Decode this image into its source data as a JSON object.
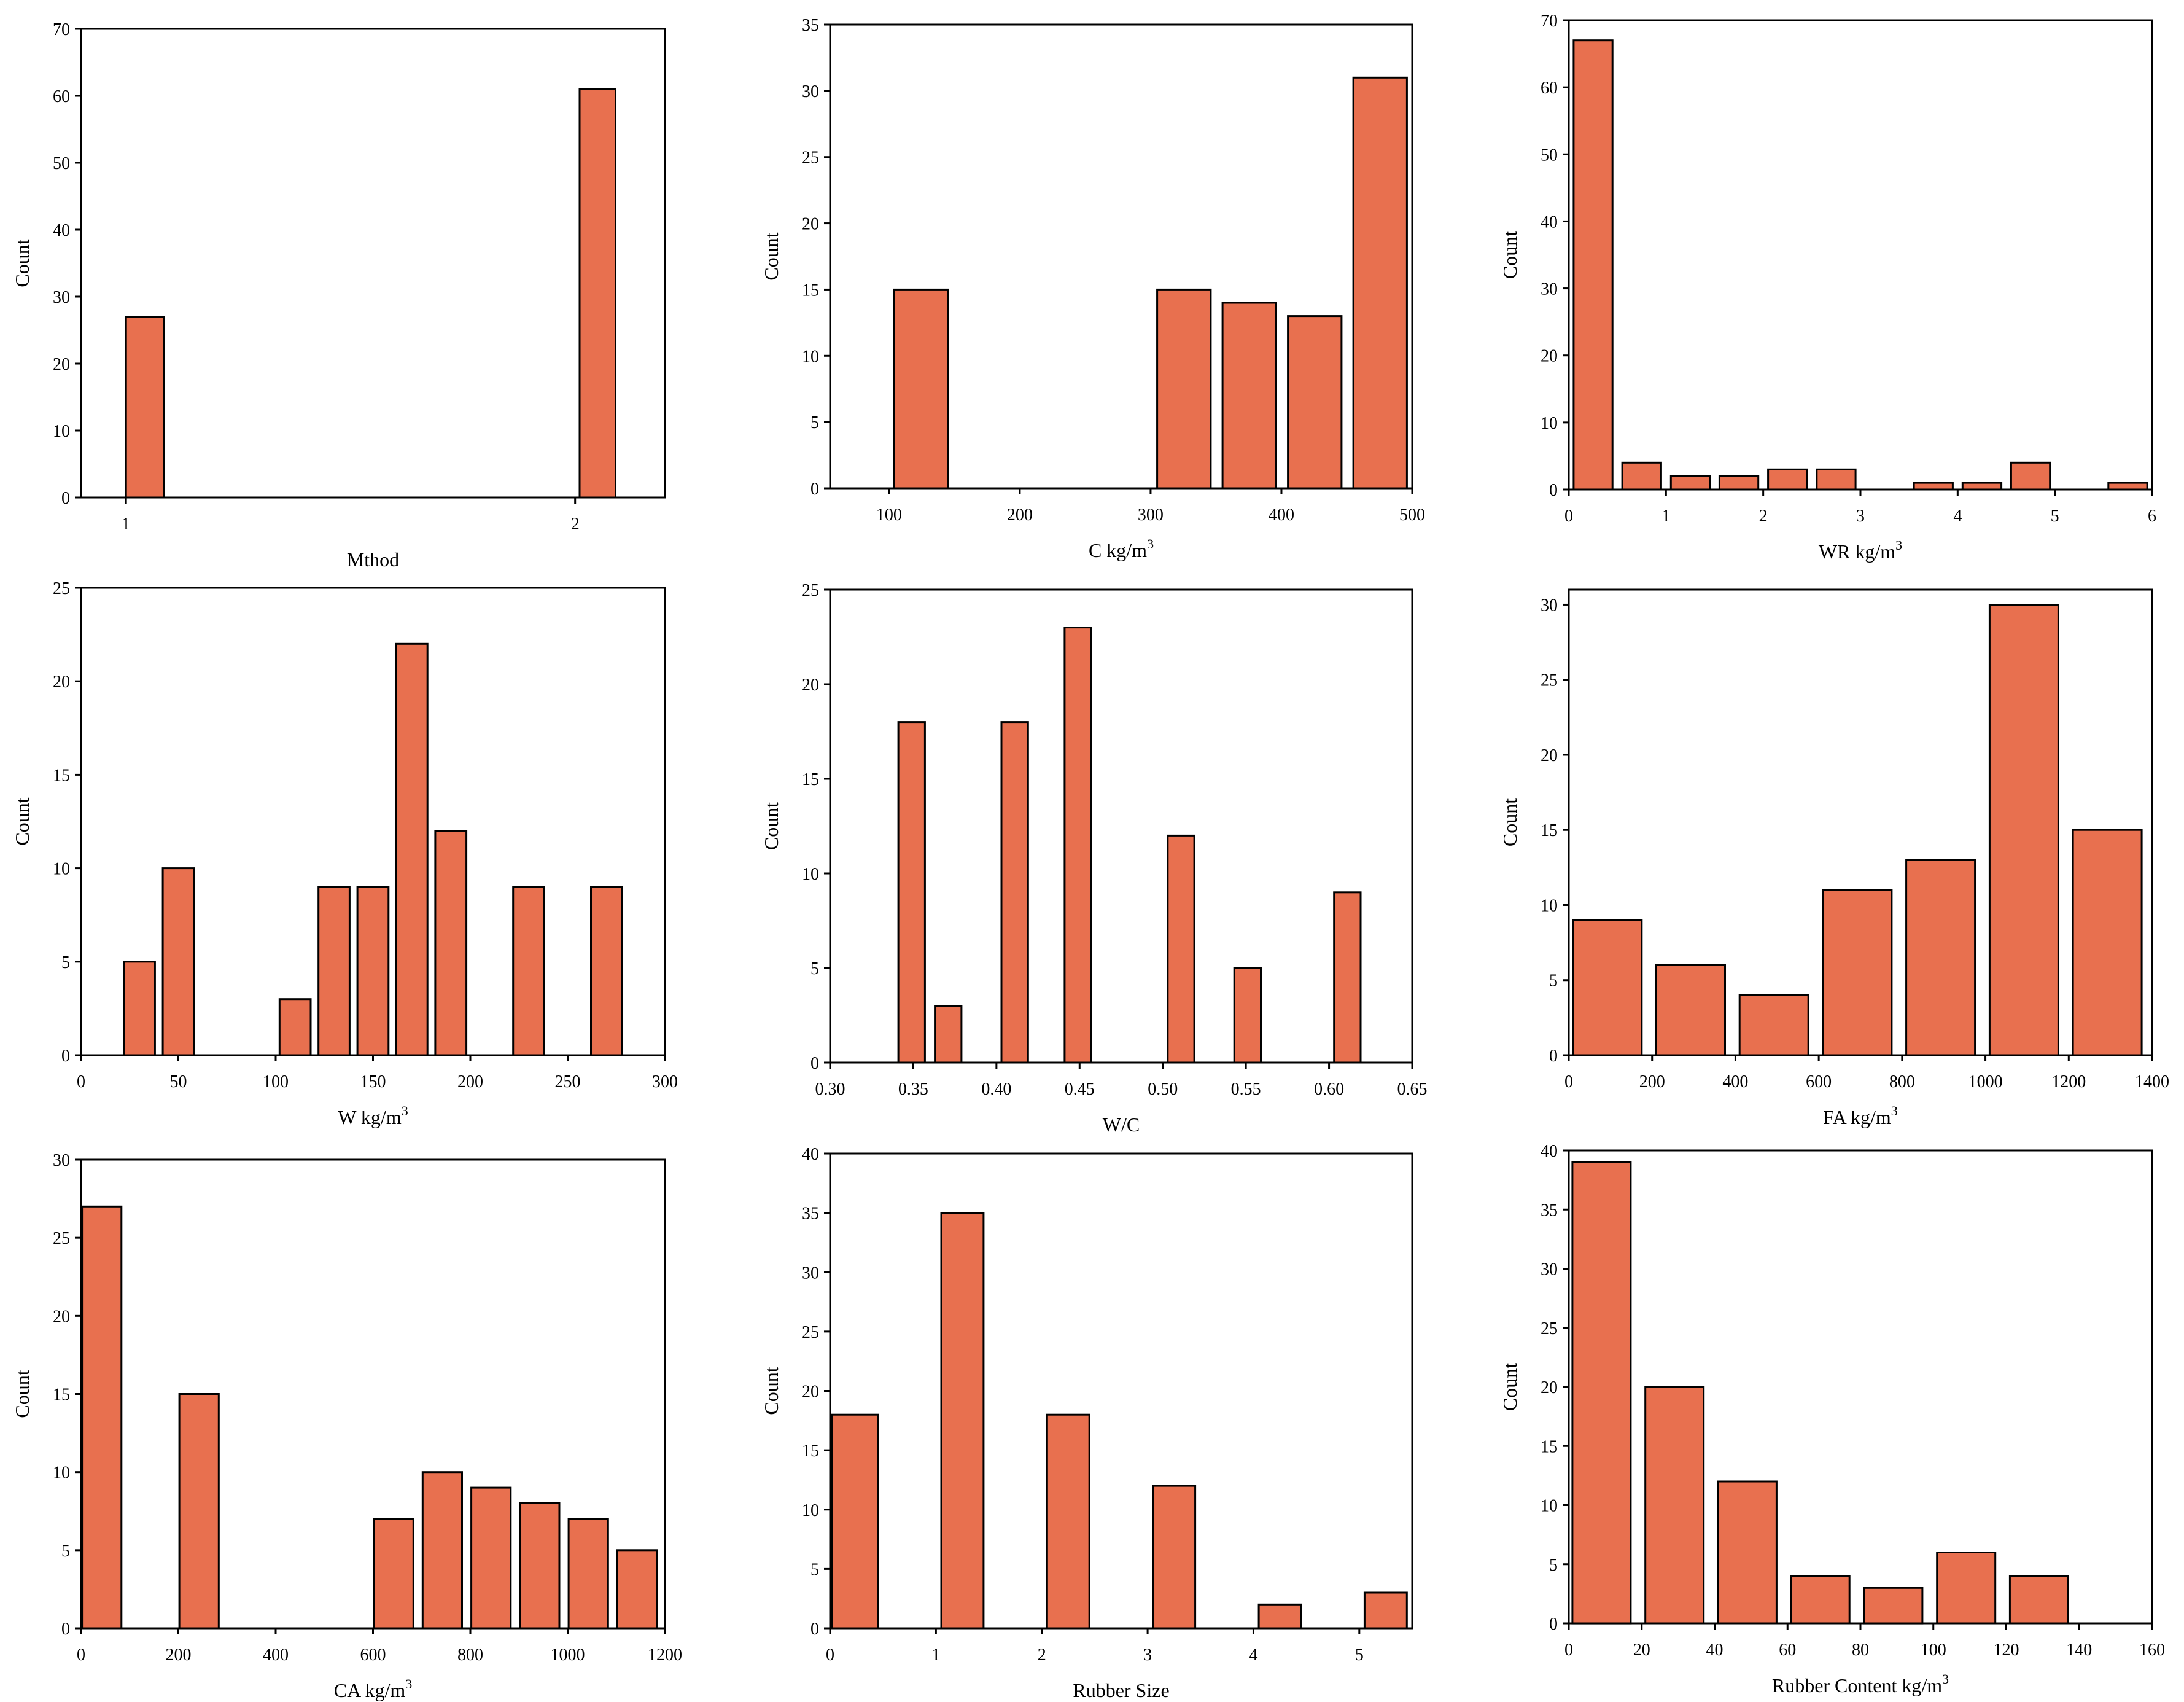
{
  "style": {
    "bar_fill": "#E8704F",
    "bar_stroke": "#000000",
    "frame_stroke": "#000000"
  },
  "chart_data": [
    {
      "type": "bar",
      "xlabel": "Mthod",
      "xsup": "",
      "ylabel": "Count",
      "xlim": [
        0.9,
        2.2
      ],
      "ylim": [
        0,
        70
      ],
      "xticks": [
        1,
        2
      ],
      "xtick_labels": [
        "1",
        "2"
      ],
      "yticks": [
        0,
        10,
        20,
        30,
        40,
        50,
        60,
        70
      ],
      "ytick_labels": [
        "0",
        "10",
        "20",
        "30",
        "40",
        "50",
        "60",
        "70"
      ],
      "bars": [
        {
          "x0": 1.0,
          "x1": 1.085,
          "value": 27
        },
        {
          "x0": 2.01,
          "x1": 2.09,
          "value": 61
        }
      ]
    },
    {
      "type": "bar",
      "xlabel": "C kg/m",
      "xsup": "3",
      "ylabel": "Count",
      "xlim": [
        55,
        500
      ],
      "ylim": [
        0,
        35
      ],
      "xticks": [
        100,
        200,
        300,
        400,
        500
      ],
      "xtick_labels": [
        "100",
        "200",
        "300",
        "400",
        "500"
      ],
      "yticks": [
        0,
        5,
        10,
        15,
        20,
        25,
        30,
        35
      ],
      "ytick_labels": [
        "0",
        "5",
        "10",
        "15",
        "20",
        "25",
        "30",
        "35"
      ],
      "bars": [
        {
          "x0": 104,
          "x1": 145,
          "value": 15
        },
        {
          "x0": 305,
          "x1": 346,
          "value": 15
        },
        {
          "x0": 355,
          "x1": 396,
          "value": 14
        },
        {
          "x0": 405,
          "x1": 446,
          "value": 13
        },
        {
          "x0": 455,
          "x1": 496,
          "value": 31
        }
      ]
    },
    {
      "type": "bar",
      "xlabel": "WR kg/m",
      "xsup": "3",
      "ylabel": "Count",
      "xlim": [
        0,
        6
      ],
      "ylim": [
        0,
        70
      ],
      "xticks": [
        0,
        1,
        2,
        3,
        4,
        5,
        6
      ],
      "xtick_labels": [
        "0",
        "1",
        "2",
        "3",
        "4",
        "5",
        "6"
      ],
      "yticks": [
        0,
        10,
        20,
        30,
        40,
        50,
        60,
        70
      ],
      "ytick_labels": [
        "0",
        "10",
        "20",
        "30",
        "40",
        "50",
        "60",
        "70"
      ],
      "bars": [
        {
          "x0": 0.05,
          "x1": 0.45,
          "value": 67
        },
        {
          "x0": 0.55,
          "x1": 0.95,
          "value": 4
        },
        {
          "x0": 1.05,
          "x1": 1.45,
          "value": 2
        },
        {
          "x0": 1.55,
          "x1": 1.95,
          "value": 2
        },
        {
          "x0": 2.05,
          "x1": 2.45,
          "value": 3
        },
        {
          "x0": 2.55,
          "x1": 2.95,
          "value": 3
        },
        {
          "x0": 3.55,
          "x1": 3.95,
          "value": 1
        },
        {
          "x0": 4.05,
          "x1": 4.45,
          "value": 1
        },
        {
          "x0": 4.55,
          "x1": 4.95,
          "value": 4
        },
        {
          "x0": 5.55,
          "x1": 5.95,
          "value": 1
        }
      ]
    },
    {
      "type": "bar",
      "xlabel": "W kg/m",
      "xsup": "3",
      "ylabel": "Count",
      "xlim": [
        0,
        300
      ],
      "ylim": [
        0,
        25
      ],
      "xticks": [
        0,
        50,
        100,
        150,
        200,
        250,
        300
      ],
      "xtick_labels": [
        "0",
        "50",
        "100",
        "150",
        "200",
        "250",
        "300"
      ],
      "yticks": [
        0,
        5,
        10,
        15,
        20,
        25
      ],
      "ytick_labels": [
        "0",
        "5",
        "10",
        "15",
        "20",
        "25"
      ],
      "bars": [
        {
          "x0": 22,
          "x1": 38,
          "value": 5
        },
        {
          "x0": 42,
          "x1": 58,
          "value": 10
        },
        {
          "x0": 102,
          "x1": 118,
          "value": 3
        },
        {
          "x0": 122,
          "x1": 138,
          "value": 9
        },
        {
          "x0": 142,
          "x1": 158,
          "value": 9
        },
        {
          "x0": 162,
          "x1": 178,
          "value": 22
        },
        {
          "x0": 182,
          "x1": 198,
          "value": 12
        },
        {
          "x0": 222,
          "x1": 238,
          "value": 9
        },
        {
          "x0": 262,
          "x1": 278,
          "value": 9
        }
      ]
    },
    {
      "type": "bar",
      "xlabel": "W/C",
      "xsup": "",
      "ylabel": "Count",
      "xlim": [
        0.3,
        0.65
      ],
      "ylim": [
        0,
        25
      ],
      "xticks": [
        0.3,
        0.35,
        0.4,
        0.45,
        0.5,
        0.55,
        0.6,
        0.65
      ],
      "xtick_labels": [
        "0.30",
        "0.35",
        "0.40",
        "0.45",
        "0.50",
        "0.55",
        "0.60",
        "0.65"
      ],
      "yticks": [
        0,
        5,
        10,
        15,
        20,
        25
      ],
      "ytick_labels": [
        "0",
        "5",
        "10",
        "15",
        "20",
        "25"
      ],
      "bars": [
        {
          "x0": 0.341,
          "x1": 0.357,
          "value": 18
        },
        {
          "x0": 0.363,
          "x1": 0.379,
          "value": 3
        },
        {
          "x0": 0.403,
          "x1": 0.419,
          "value": 18
        },
        {
          "x0": 0.441,
          "x1": 0.457,
          "value": 23
        },
        {
          "x0": 0.503,
          "x1": 0.519,
          "value": 12
        },
        {
          "x0": 0.543,
          "x1": 0.559,
          "value": 5
        },
        {
          "x0": 0.603,
          "x1": 0.619,
          "value": 9
        }
      ]
    },
    {
      "type": "bar",
      "xlabel": "FA kg/m",
      "xsup": "3",
      "ylabel": "Count",
      "xlim": [
        0,
        1400
      ],
      "ylim": [
        0,
        31
      ],
      "xticks": [
        0,
        200,
        400,
        600,
        800,
        1000,
        1200,
        1400
      ],
      "xtick_labels": [
        "0",
        "200",
        "400",
        "600",
        "800",
        "1000",
        "1200",
        "1400"
      ],
      "yticks": [
        0,
        5,
        10,
        15,
        20,
        25,
        30
      ],
      "ytick_labels": [
        "0",
        "5",
        "10",
        "15",
        "20",
        "25",
        "30"
      ],
      "bars": [
        {
          "x0": 10,
          "x1": 175,
          "value": 9
        },
        {
          "x0": 210,
          "x1": 375,
          "value": 6
        },
        {
          "x0": 410,
          "x1": 575,
          "value": 4
        },
        {
          "x0": 610,
          "x1": 775,
          "value": 11
        },
        {
          "x0": 810,
          "x1": 975,
          "value": 13
        },
        {
          "x0": 1010,
          "x1": 1175,
          "value": 30
        },
        {
          "x0": 1210,
          "x1": 1375,
          "value": 15
        }
      ]
    },
    {
      "type": "bar",
      "xlabel": "CA kg/m",
      "xsup": "3",
      "ylabel": "Count",
      "xlim": [
        0,
        1200
      ],
      "ylim": [
        0,
        30
      ],
      "xticks": [
        0,
        200,
        400,
        600,
        800,
        1000,
        1200
      ],
      "xtick_labels": [
        "0",
        "200",
        "400",
        "600",
        "800",
        "1000",
        "1200"
      ],
      "yticks": [
        0,
        5,
        10,
        15,
        20,
        25,
        30
      ],
      "ytick_labels": [
        "0",
        "5",
        "10",
        "15",
        "20",
        "25",
        "30"
      ],
      "bars": [
        {
          "x0": 2,
          "x1": 83,
          "value": 27
        },
        {
          "x0": 202,
          "x1": 283,
          "value": 15
        },
        {
          "x0": 602,
          "x1": 683,
          "value": 7
        },
        {
          "x0": 702,
          "x1": 783,
          "value": 10
        },
        {
          "x0": 802,
          "x1": 883,
          "value": 9
        },
        {
          "x0": 902,
          "x1": 983,
          "value": 8
        },
        {
          "x0": 1002,
          "x1": 1083,
          "value": 7
        },
        {
          "x0": 1102,
          "x1": 1183,
          "value": 5
        }
      ]
    },
    {
      "type": "bar",
      "xlabel": "Rubber Size",
      "xsup": "",
      "ylabel": "Count",
      "xlim": [
        0,
        5.5
      ],
      "ylim": [
        0,
        40
      ],
      "xticks": [
        0,
        1,
        2,
        3,
        4,
        5
      ],
      "xtick_labels": [
        "0",
        "1",
        "2",
        "3",
        "4",
        "5"
      ],
      "yticks": [
        0,
        5,
        10,
        15,
        20,
        25,
        30,
        35,
        40
      ],
      "ytick_labels": [
        "0",
        "5",
        "10",
        "15",
        "20",
        "25",
        "30",
        "35",
        "40"
      ],
      "bars": [
        {
          "x0": 0.02,
          "x1": 0.45,
          "value": 18
        },
        {
          "x0": 1.05,
          "x1": 1.45,
          "value": 35
        },
        {
          "x0": 2.05,
          "x1": 2.45,
          "value": 18
        },
        {
          "x0": 3.05,
          "x1": 3.45,
          "value": 12
        },
        {
          "x0": 4.05,
          "x1": 4.45,
          "value": 2
        },
        {
          "x0": 5.05,
          "x1": 5.45,
          "value": 3
        }
      ]
    },
    {
      "type": "bar",
      "xlabel": "Rubber Content kg/m",
      "xsup": "3",
      "ylabel": "Count",
      "xlim": [
        0,
        160
      ],
      "ylim": [
        0,
        40
      ],
      "xticks": [
        0,
        20,
        40,
        60,
        80,
        100,
        120,
        140,
        160
      ],
      "xtick_labels": [
        "0",
        "20",
        "40",
        "60",
        "80",
        "100",
        "120",
        "140",
        "160"
      ],
      "yticks": [
        0,
        5,
        10,
        15,
        20,
        25,
        30,
        35,
        40
      ],
      "ytick_labels": [
        "0",
        "5",
        "10",
        "15",
        "20",
        "25",
        "30",
        "35",
        "40"
      ],
      "bars": [
        {
          "x0": 1,
          "x1": 17,
          "value": 39
        },
        {
          "x0": 21,
          "x1": 37,
          "value": 20
        },
        {
          "x0": 41,
          "x1": 57,
          "value": 12
        },
        {
          "x0": 61,
          "x1": 77,
          "value": 4
        },
        {
          "x0": 81,
          "x1": 97,
          "value": 3
        },
        {
          "x0": 101,
          "x1": 117,
          "value": 6
        },
        {
          "x0": 121,
          "x1": 137,
          "value": 4
        }
      ]
    }
  ]
}
